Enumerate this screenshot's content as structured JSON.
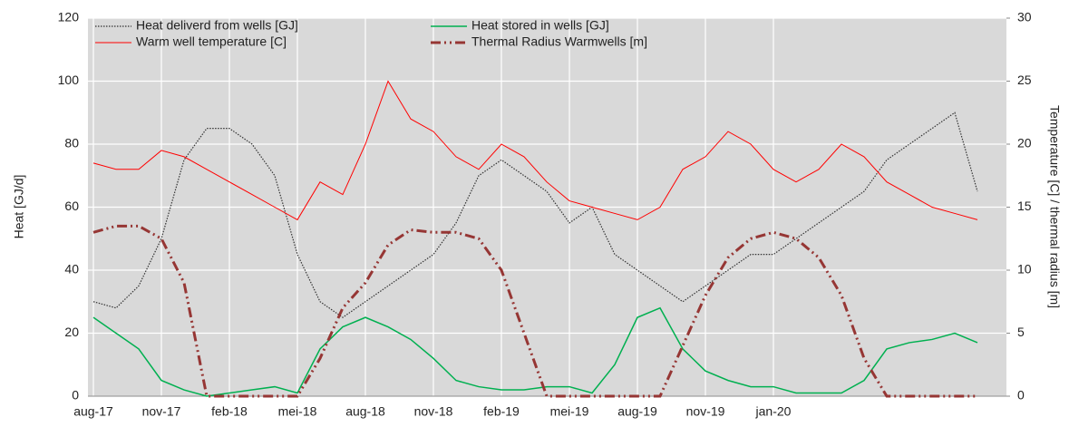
{
  "chart_data": {
    "type": "line",
    "y_label": "Heat  [GJ/d]",
    "y2_label": "Temperature [C] / thermal radius [m]",
    "categories": [
      "aug-17",
      null,
      null,
      "nov-17",
      null,
      null,
      "feb-18",
      null,
      null,
      "mei-18",
      null,
      null,
      "aug-18",
      null,
      null,
      "nov-18",
      null,
      null,
      "feb-19",
      null,
      null,
      "mei-19",
      null,
      null,
      "aug-19",
      null,
      null,
      "nov-19",
      null,
      null,
      "jan-20",
      null,
      null,
      null,
      null,
      null,
      null,
      null,
      null,
      null
    ],
    "ylim": [
      0,
      120
    ],
    "yticks": [
      0,
      20,
      40,
      60,
      80,
      100,
      120
    ],
    "y2lim": [
      0,
      30
    ],
    "y2ticks": [
      0,
      5,
      10,
      15,
      20,
      25,
      30
    ],
    "grid": true,
    "series": [
      {
        "name": "Heat deliverd from wells [GJ]",
        "color": "#333333",
        "style": "dotted",
        "values": [
          30,
          28,
          35,
          50,
          75,
          85,
          85,
          80,
          70,
          45,
          30,
          25,
          30,
          35,
          40,
          45,
          55,
          70,
          75,
          70,
          65,
          55,
          60,
          45,
          40,
          35,
          30,
          35,
          40,
          45,
          45,
          50,
          55,
          60,
          65,
          75,
          80,
          85,
          90,
          65
        ]
      },
      {
        "name": "Heat stored in wells [GJ]",
        "color": "#00b050",
        "style": "solid",
        "values": [
          25,
          20,
          15,
          5,
          2,
          0,
          1,
          2,
          3,
          1,
          15,
          22,
          25,
          22,
          18,
          12,
          5,
          3,
          2,
          2,
          3,
          3,
          1,
          10,
          25,
          28,
          15,
          8,
          5,
          3,
          3,
          1,
          1,
          1,
          5,
          15,
          17,
          18,
          20,
          17
        ]
      },
      {
        "name": "Warm well temperature [C]",
        "color": "#ff0000",
        "style": "thin",
        "axis": "y2",
        "values": [
          18.5,
          18,
          18,
          19.5,
          19,
          18,
          17,
          16,
          15,
          14,
          17,
          16,
          20,
          25,
          22,
          21,
          19,
          18,
          20,
          19,
          17,
          15.5,
          15,
          14.5,
          14,
          15,
          18,
          19,
          21,
          20,
          18,
          17,
          18,
          20,
          19,
          17,
          16,
          15,
          14.5,
          14
        ]
      },
      {
        "name": "Thermal Radius Warmwells [m]",
        "color": "#963634",
        "style": "dashdot",
        "axis": "y2",
        "values": [
          13,
          13.5,
          13.5,
          12.5,
          9,
          0,
          0,
          0,
          0,
          0,
          3,
          7,
          9,
          12,
          13.2,
          13,
          13,
          12.5,
          10,
          5,
          0,
          0,
          0,
          0,
          0,
          0,
          4,
          8,
          11,
          12.5,
          13,
          12.5,
          11,
          8,
          3,
          0,
          0,
          0,
          0,
          0
        ]
      }
    ]
  }
}
